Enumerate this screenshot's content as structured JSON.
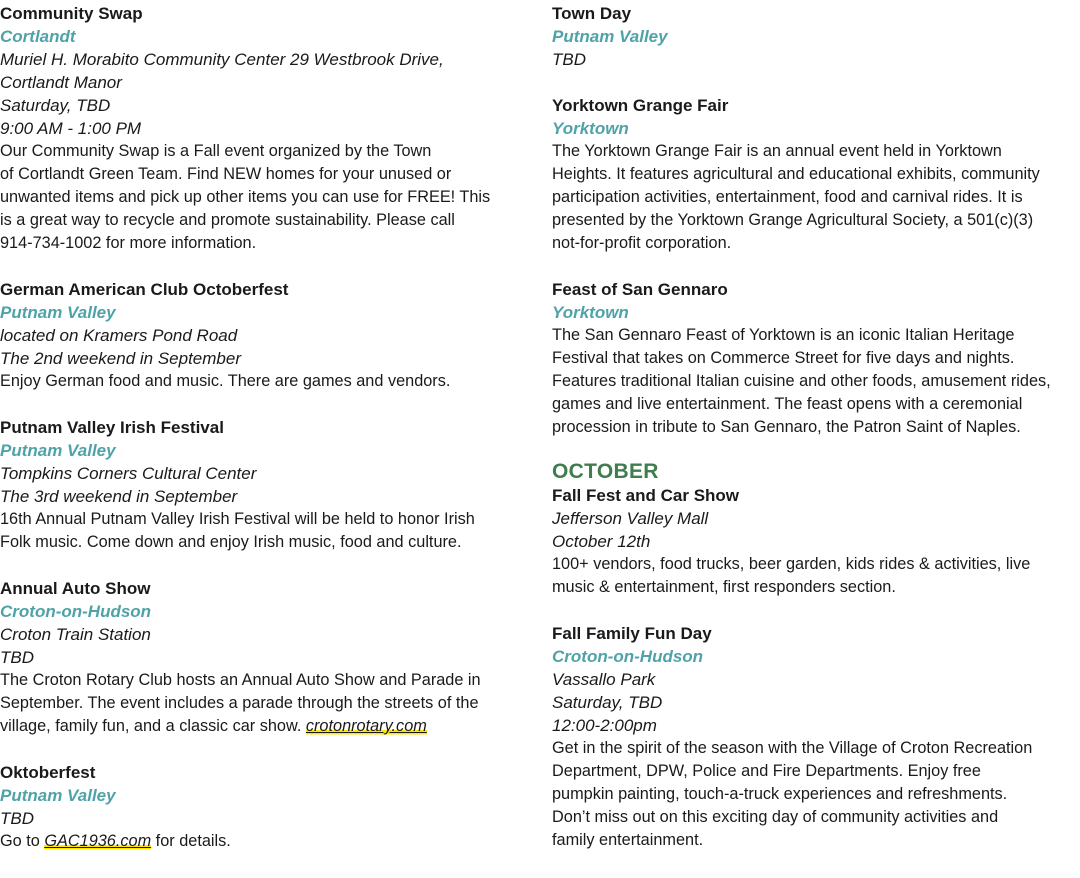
{
  "left": [
    {
      "title": "Community Swap",
      "town": "Cortlandt",
      "details": [
        "Muriel H. Morabito Community Center 29 Westbrook Drive,",
        "Cortlandt Manor",
        "Saturday, TBD",
        "9:00 AM - 1:00 PM"
      ],
      "desc": [
        "Our Community Swap is a Fall event organized by the Town",
        "of Cortlandt Green Team. Find NEW homes for your unused or",
        "unwanted items and pick up other items you can use for FREE! This",
        "is a great way to recycle and promote sustainability. Please call",
        "914-734-1002 for more information."
      ]
    },
    {
      "title": "German American Club Octoberfest",
      "town": "Putnam Valley",
      "details": [
        "located on Kramers Pond Road",
        "The 2nd weekend in September"
      ],
      "desc": [
        "Enjoy German food and music. There are games and vendors."
      ]
    },
    {
      "title": "Putnam Valley Irish Festival",
      "town": "Putnam Valley",
      "details": [
        "Tompkins Corners Cultural Center",
        "The 3rd weekend in September"
      ],
      "desc": [
        "16th Annual Putnam Valley Irish Festival will be held to honor Irish",
        "Folk music. Come down and enjoy Irish music, food and culture."
      ]
    },
    {
      "title": "Annual Auto Show",
      "town": "Croton-on-Hudson",
      "details": [
        "Croton Train Station",
        "TBD"
      ],
      "desc": [
        "The Croton Rotary Club hosts an Annual Auto Show and Parade in",
        "September. The event includes a parade through the streets of the",
        "village, family fun, and a classic car show. "
      ],
      "link": "crotonrotary.com"
    },
    {
      "title": "Oktoberfest",
      "town": "Putnam Valley",
      "details": [
        "TBD"
      ],
      "desc_prefix": "Go to ",
      "link": "GAC1936.com",
      "desc_suffix": " for details."
    }
  ],
  "right": [
    {
      "title": "Town Day",
      "town": "Putnam Valley",
      "details": [
        "TBD"
      ]
    },
    {
      "title": "Yorktown Grange Fair",
      "town": "Yorktown",
      "desc": [
        "The Yorktown Grange Fair is an annual event held in Yorktown",
        "Heights. It features agricultural and educational exhibits, community",
        "participation activities, entertainment, food and carnival rides. It is",
        "presented by the Yorktown Grange Agricultural Society, a 501(c)(3)",
        "not-for-profit corporation."
      ]
    },
    {
      "title": "Feast of San Gennaro",
      "town": "Yorktown",
      "desc": [
        "The San Gennaro Feast of Yorktown is an iconic Italian Heritage",
        "Festival that takes on Commerce Street for five days and nights.",
        "Features traditional Italian cuisine and other foods, amusement rides,",
        "games and live entertainment. The feast opens with a ceremonial",
        "procession in tribute to San Gennaro, the Patron Saint of Naples."
      ]
    }
  ],
  "section_october": "OCTOBER",
  "right_october": [
    {
      "title": "Fall Fest and Car Show",
      "details": [
        "Jefferson Valley Mall",
        "October 12th"
      ],
      "desc": [
        "100+ vendors, food trucks, beer garden, kids rides & activities, live",
        "music & entertainment, first responders section."
      ]
    },
    {
      "title": "Fall Family Fun Day",
      "town": "Croton-on-Hudson",
      "details": [
        "Vassallo Park",
        "Saturday, TBD",
        "12:00-2:00pm"
      ],
      "desc": [
        "Get in the spirit of the season with the Village of Croton Recreation",
        "Department, DPW, Police and Fire Departments. Enjoy free",
        "pumpkin painting, touch-a-truck experiences and refreshments.",
        "Don’t miss out on this exciting day of community activities and",
        "family entertainment."
      ]
    }
  ],
  "colors": {
    "town": "#4fa3a8",
    "section": "#3f7d4e",
    "highlight": "#ffe600"
  }
}
